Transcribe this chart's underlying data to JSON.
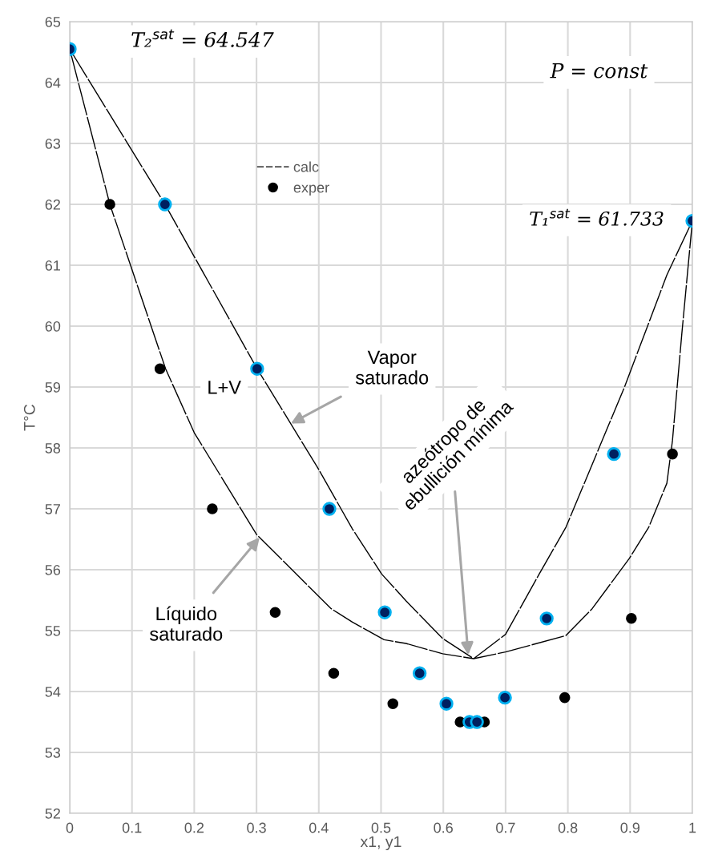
{
  "chart_data": {
    "type": "line",
    "xlabel": "x1, y1",
    "ylabel": "T°C",
    "xlim": [
      0,
      1
    ],
    "xticks": [
      0,
      0.1,
      0.2,
      0.3,
      0.4,
      0.5,
      0.6,
      0.7,
      0.8,
      0.9,
      1
    ],
    "ylim": [
      52,
      65
    ],
    "yticks": [
      52,
      53,
      54,
      55,
      56,
      57,
      58,
      59,
      60,
      61,
      62,
      63,
      64,
      65
    ],
    "grid": true,
    "legend": "top left",
    "series": [
      {
        "name": "calc",
        "color": "#000000",
        "line_style": "dashed",
        "marker": "none",
        "x": [
          0,
          0.153,
          0.301,
          0.398,
          0.454,
          0.501,
          0.54,
          0.599,
          0.6487,
          0.7,
          0.754,
          0.797,
          0.891,
          0.959,
          1,
          null,
          0,
          0.0645,
          0.154,
          0.2,
          0.3,
          0.42,
          0.454,
          0.505,
          0.54,
          0.599,
          0.6487,
          0.7,
          0.797,
          0.839,
          0.899,
          0.93,
          0.959,
          0.968,
          0.983,
          1
        ],
        "values": [
          64.55,
          62.0,
          59.3,
          57.68,
          56.67,
          55.93,
          55.49,
          54.87,
          54.54,
          54.94,
          55.93,
          56.7,
          59.0,
          60.84,
          61.73,
          null,
          64.55,
          62.0,
          59.3,
          58.25,
          56.58,
          55.36,
          55.14,
          54.85,
          54.79,
          54.62,
          54.54,
          54.65,
          54.92,
          55.36,
          56.19,
          56.7,
          57.42,
          58.12,
          59.87,
          61.73
        ]
      },
      {
        "name": "exper",
        "type": "scatter",
        "color": "#000000",
        "marker": "circle",
        "x": [
          0.0645,
          0.145,
          0.229,
          0.33,
          0.424,
          0.519,
          0.627,
          0.666,
          0.795,
          0.902,
          0.968
        ],
        "values": [
          62.0,
          59.3,
          57.0,
          55.3,
          54.3,
          53.8,
          53.5,
          53.5,
          53.9,
          55.2,
          57.9
        ]
      },
      {
        "type": "scatter",
        "color": "#002060",
        "marker": "circle",
        "x": [
          0,
          0.153,
          0.301,
          0.417,
          0.506,
          0.562,
          0.605,
          0.642,
          0.654,
          0.699,
          0.766,
          0.874,
          1
        ],
        "values": [
          64.55,
          62.0,
          59.3,
          57.0,
          55.3,
          54.3,
          53.8,
          53.5,
          53.5,
          53.9,
          55.2,
          57.9,
          61.73
        ]
      }
    ],
    "annotations": [
      "T₂$^{sat}$ = 64.547",
      "P = const",
      "T₁$^{sat}$ = 61.733",
      {
        "text": "Vapor\nsaturado",
        "x": 0.355,
        "y": 58.4
      },
      "L+V",
      {
        "text": "Líquido\nsaturado",
        "x": 0.305,
        "y": 56.53
      },
      {
        "text": "azeótropo de\nebullición mínima",
        "x": 0.64,
        "y": 54.6
      }
    ]
  }
}
